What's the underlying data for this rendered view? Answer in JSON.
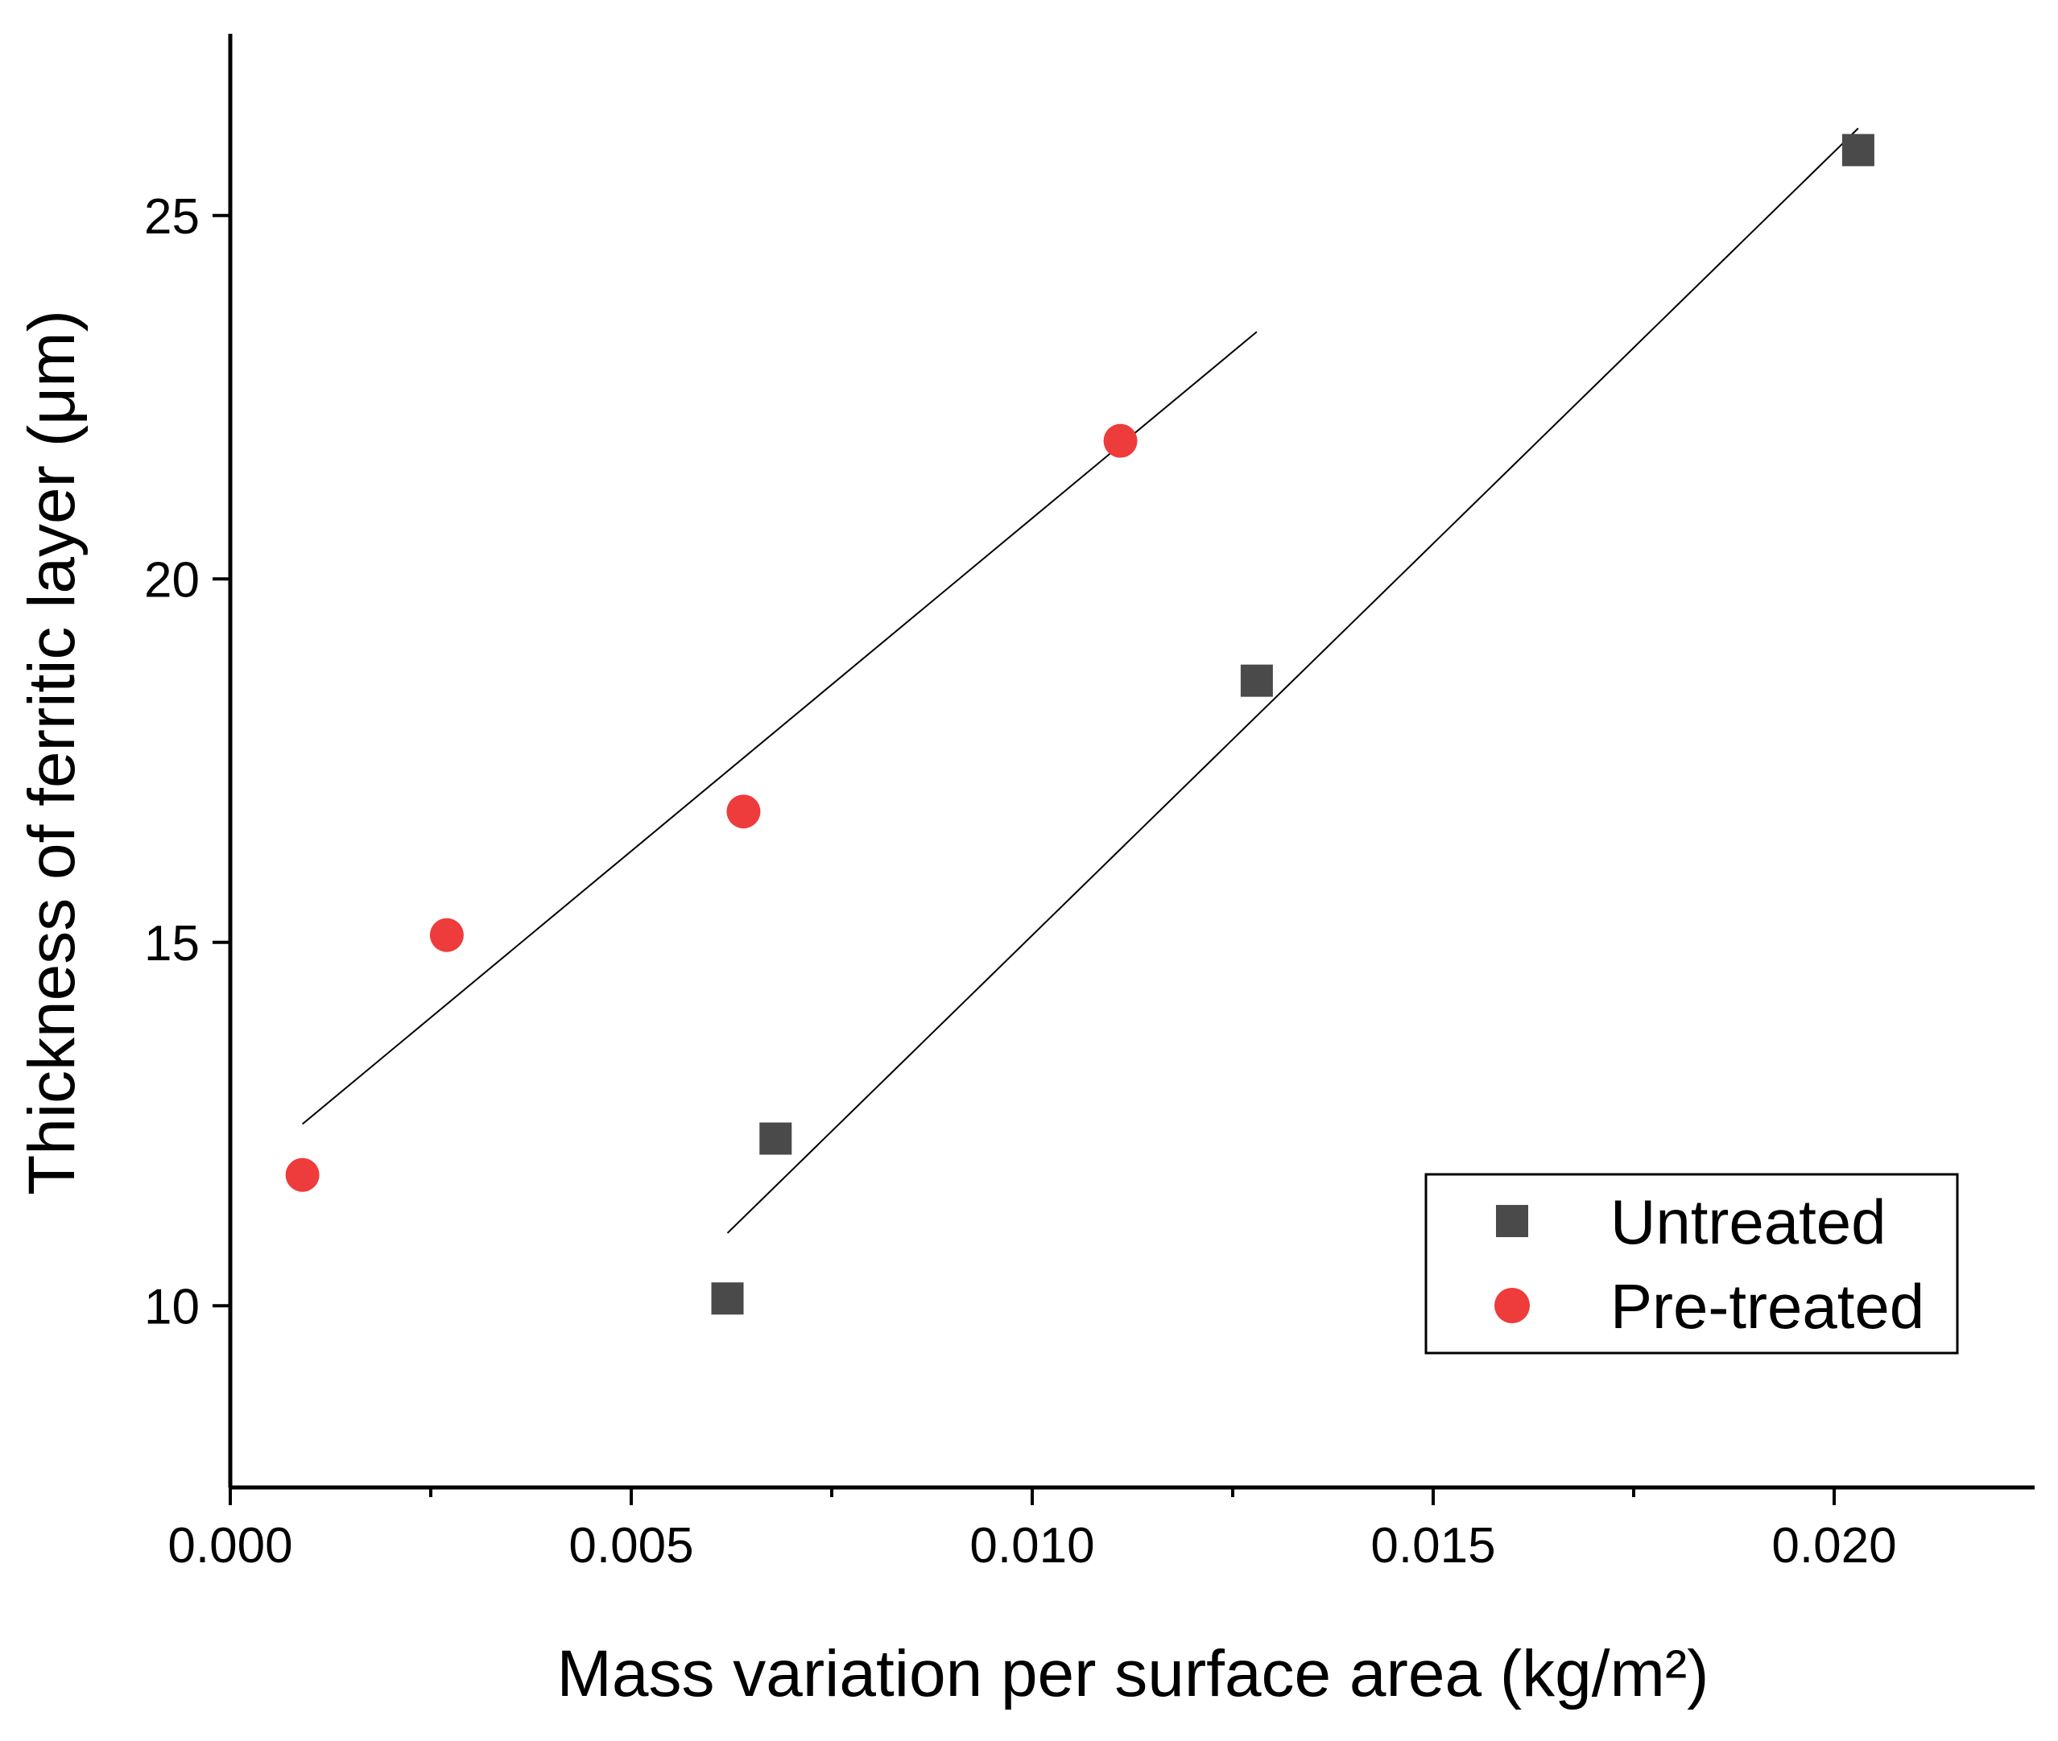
{
  "chart_data": {
    "type": "scatter",
    "title": "",
    "xlabel": "Mass variation per surface area (kg/m²)",
    "ylabel": "Thickness of ferritic layer (μm)",
    "xlim": [
      0.0,
      0.0225
    ],
    "ylim": [
      7.5,
      27.5
    ],
    "xticks": [
      {
        "value": 0.0,
        "label": "0.000"
      },
      {
        "value": 0.005,
        "label": "0.005"
      },
      {
        "value": 0.01,
        "label": "0.010"
      },
      {
        "value": 0.015,
        "label": "0.015"
      },
      {
        "value": 0.02,
        "label": "0.020"
      }
    ],
    "xminor": [
      0.0025,
      0.0075,
      0.0125,
      0.0175
    ],
    "yticks": [
      {
        "value": 10,
        "label": "10"
      },
      {
        "value": 15,
        "label": "15"
      },
      {
        "value": 20,
        "label": "20"
      },
      {
        "value": 25,
        "label": "25"
      }
    ],
    "grid": false,
    "legend_position": "bottom-right",
    "series": [
      {
        "name": "Untreated",
        "marker": "square",
        "color": "#4a4a4a",
        "x": [
          0.0062,
          0.0068,
          0.0128,
          0.0203
        ],
        "y": [
          10.1,
          12.3,
          18.6,
          25.9
        ],
        "fit": {
          "x": [
            0.0062,
            0.0203
          ],
          "y": [
            11.0,
            26.2
          ]
        }
      },
      {
        "name": "Pre-treated",
        "marker": "circle",
        "color": "#ee3b3b",
        "x": [
          0.0009,
          0.0027,
          0.0064,
          0.0111
        ],
        "y": [
          11.8,
          15.1,
          16.8,
          21.9
        ],
        "fit": {
          "x": [
            0.0009,
            0.0128
          ],
          "y": [
            12.5,
            23.4
          ]
        }
      }
    ]
  }
}
